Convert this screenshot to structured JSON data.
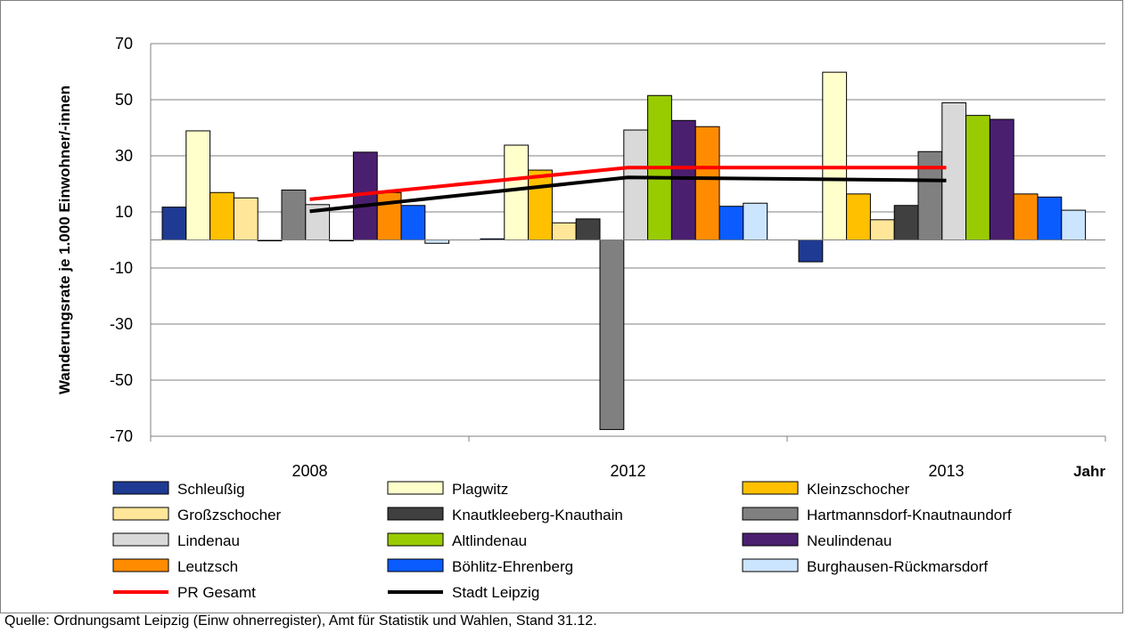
{
  "chart_data": {
    "type": "bar",
    "categories": [
      "2008",
      "2012",
      "2013"
    ],
    "ylabel": "Wanderungsrate je 1.000 Einwohner/-innen",
    "xlabel": "Jahr",
    "ylim": [
      -70,
      70
    ],
    "yticks": [
      70,
      50,
      30,
      10,
      -10,
      -30,
      -50,
      -70
    ],
    "grid": true,
    "legend_position": "bottom",
    "series": [
      {
        "name": "Schleußig",
        "color": "#1f3a93",
        "values": [
          11.7,
          0.4,
          -7.8
        ]
      },
      {
        "name": "Plagwitz",
        "color": "#ffffcc",
        "values": [
          38.9,
          33.8,
          59.8
        ]
      },
      {
        "name": "Kleinzschocher",
        "color": "#ffc000",
        "values": [
          16.9,
          24.9,
          16.4
        ]
      },
      {
        "name": "Großzschocher",
        "color": "#ffe699",
        "values": [
          15.0,
          6.1,
          7.2
        ]
      },
      {
        "name": "Knautkleeberg-Knauthain",
        "color": "#404040",
        "values": [
          -0.3,
          7.5,
          12.3
        ]
      },
      {
        "name": "Hartmannsdorf-Knautnaundorf",
        "color": "#808080",
        "values": [
          17.8,
          -67.6,
          31.5
        ]
      },
      {
        "name": "Lindenau",
        "color": "#d9d9d9",
        "values": [
          12.6,
          39.2,
          48.9
        ]
      },
      {
        "name": "Altlindenau",
        "color": "#99cc00",
        "values": [
          -0.2,
          51.5,
          44.4
        ]
      },
      {
        "name": "Neulindenau",
        "color": "#4b1f6f",
        "values": [
          31.3,
          42.6,
          43.0
        ]
      },
      {
        "name": "Leutzsch",
        "color": "#ff8c00",
        "values": [
          16.9,
          40.4,
          16.4
        ]
      },
      {
        "name": "Böhlitz-Ehrenberg",
        "color": "#0a5cff",
        "values": [
          12.3,
          12.0,
          15.3
        ]
      },
      {
        "name": "Burghausen-Rückmarsdorf",
        "color": "#cce5ff",
        "values": [
          -1.2,
          13.1,
          10.6
        ]
      }
    ],
    "lines": [
      {
        "name": "PR Gesamt",
        "color": "#ff0000",
        "values": [
          14.5,
          25.8,
          25.8
        ]
      },
      {
        "name": "Stadt Leipzig",
        "color": "#000000",
        "values": [
          10.2,
          22.3,
          21.2
        ]
      }
    ]
  },
  "source": "Quelle: Ordnungsamt Leipzig (Einw ohnerregister), Amt für Statistik und Wahlen, Stand 31.12."
}
